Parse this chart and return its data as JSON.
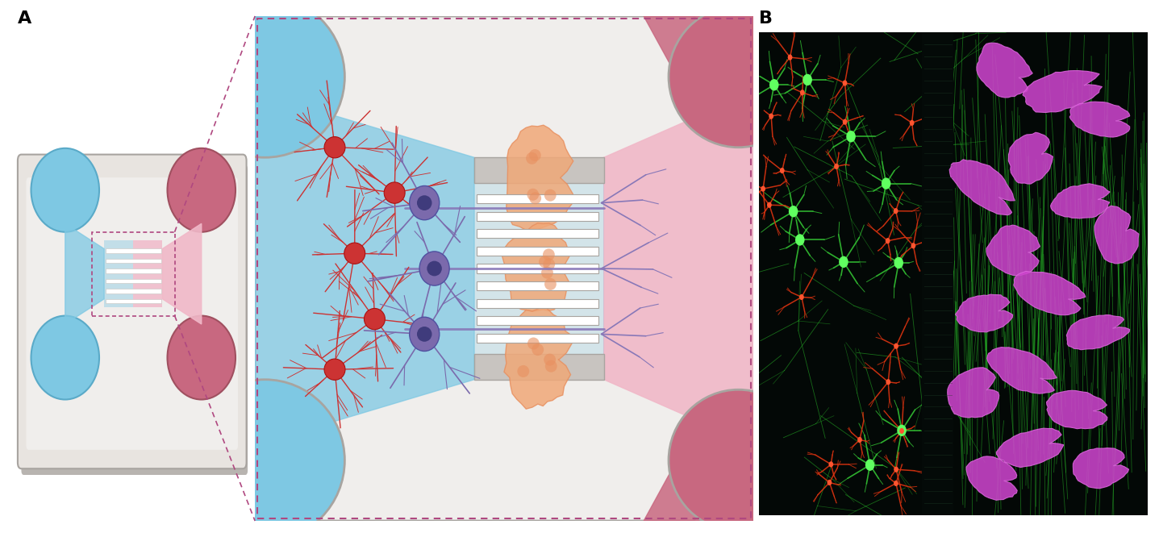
{
  "background_color": "#ffffff",
  "panel_A_label": "A",
  "panel_B_label": "B",
  "label_fontsize": 16,
  "label_fontweight": "bold",
  "fig_width": 14.37,
  "fig_height": 6.66,
  "device_outer_bg": "#e8e4e0",
  "device_inner_bg": "#f0eeec",
  "blue_color": "#7ec8e3",
  "blue_dark": "#5aaac8",
  "pink_color": "#c86880",
  "pink_light": "#f0b8c8",
  "pink_pale": "#f8d8e0",
  "gray_device": "#a8a4a0",
  "gray_device_light": "#c8c4c0",
  "neuron_purple": "#7b6aac",
  "astrocyte_red": "#cc3333",
  "muscle_orange": "#f0a878",
  "muscle_orange_dark": "#e89060",
  "channel_white": "#f8f8f8",
  "channel_gray": "#a0989490",
  "zoom_border": "#b04880",
  "axon_purple": "#8878b8"
}
